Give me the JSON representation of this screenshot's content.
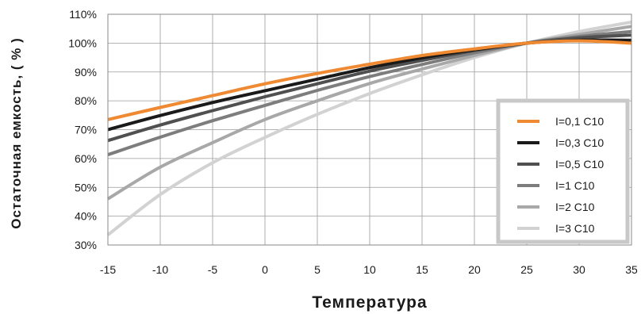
{
  "chart_data": {
    "type": "line",
    "xlabel": "Температура",
    "ylabel": "Остаточная емкость, ( % )",
    "xlim": [
      -15,
      35
    ],
    "ylim": [
      30,
      110
    ],
    "xticks": [
      -15,
      -10,
      -5,
      0,
      5,
      10,
      15,
      20,
      25,
      30,
      35
    ],
    "yticks": [
      30,
      40,
      50,
      60,
      70,
      80,
      90,
      100,
      110
    ],
    "xtick_labels": [
      "-15",
      "-10",
      "-5",
      "0",
      "5",
      "10",
      "15",
      "20",
      "25",
      "30",
      "35"
    ],
    "ytick_labels": [
      "30%",
      "40%",
      "50%",
      "60%",
      "70%",
      "80%",
      "90%",
      "100%",
      "110%"
    ],
    "grid": true,
    "legend_position": "right",
    "x": [
      -15,
      -10,
      -5,
      0,
      5,
      10,
      15,
      20,
      25,
      30,
      35
    ],
    "series": [
      {
        "name": "I=0,1 C10",
        "color": "#f08a32",
        "values": [
          73.5,
          77.7,
          81.8,
          85.9,
          89.5,
          92.7,
          95.7,
          98.0,
          100.0,
          100.8,
          100.0
        ]
      },
      {
        "name": "I=0,3 C10",
        "color": "#1a1a1a",
        "values": [
          70.0,
          74.9,
          79.4,
          83.5,
          87.5,
          91.5,
          94.9,
          97.7,
          100.0,
          101.0,
          101.0
        ]
      },
      {
        "name": "I=0,5 C10",
        "color": "#505050",
        "values": [
          66.2,
          71.6,
          76.6,
          81.4,
          85.9,
          90.3,
          94.0,
          97.4,
          100.0,
          101.8,
          102.8
        ]
      },
      {
        "name": "I=1 C10",
        "color": "#7d7d7d",
        "values": [
          61.3,
          67.4,
          73.1,
          78.4,
          83.6,
          88.4,
          92.6,
          96.6,
          100.0,
          102.3,
          104.0
        ]
      },
      {
        "name": "I=2 C10",
        "color": "#a8a8a8",
        "values": [
          46.0,
          57.0,
          65.5,
          73.5,
          80.0,
          86.0,
          91.0,
          95.7,
          100.0,
          103.0,
          105.8
        ]
      },
      {
        "name": "I=3 C10",
        "color": "#d2d2d2",
        "values": [
          33.5,
          47.5,
          58.5,
          67.3,
          75.3,
          82.5,
          89.0,
          95.0,
          100.0,
          104.0,
          107.3
        ]
      }
    ]
  }
}
